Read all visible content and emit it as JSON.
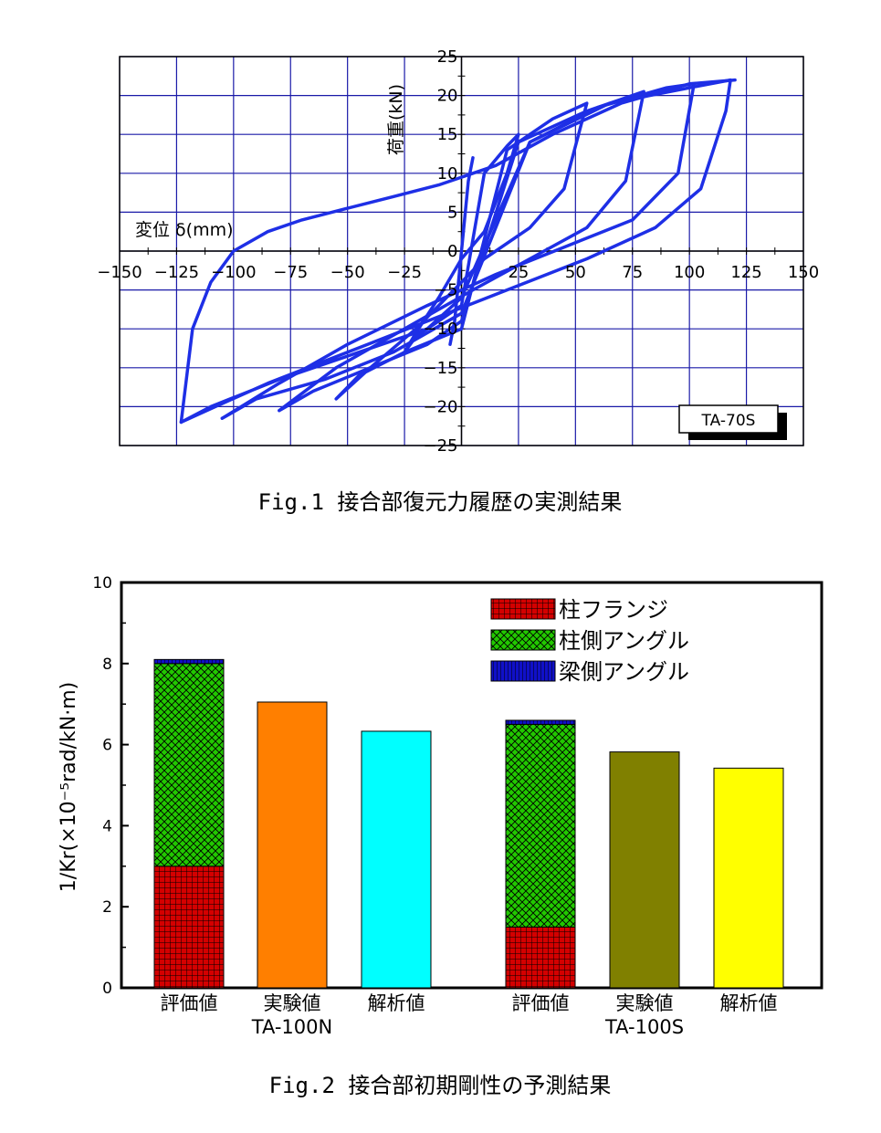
{
  "chart_data": [
    {
      "type": "line",
      "caption": "Fig.1 接合部復元力履歴の実測結果",
      "xlabel": "変位 δ(mm)",
      "ylabel": "荷重(kN)",
      "xlim": [
        -150,
        150
      ],
      "ylim": [
        -25,
        25
      ],
      "x_ticks": [
        "−150",
        "−125",
        "−100",
        "−75",
        "−50",
        "−25",
        "0",
        "25",
        "50",
        "75",
        "100",
        "125",
        "150"
      ],
      "y_ticks": [
        "25",
        "20",
        "15",
        "10",
        "5",
        "0",
        "−5",
        "−10",
        "−15",
        "−20",
        "−25"
      ],
      "grid": true,
      "legend_label": "TA-70S",
      "line_color": "#1e2fe6",
      "series": [
        {
          "amplitude": 5,
          "x": [
            -5,
            -3,
            0,
            3,
            5,
            3,
            0,
            -3,
            -5
          ],
          "y": [
            -12,
            -9,
            0,
            9,
            12,
            9,
            0,
            -9,
            -12
          ]
        },
        {
          "amplitude": 25,
          "x": [
            -25,
            -20,
            -10,
            0,
            10,
            20,
            25,
            20,
            10,
            0,
            -10,
            -20,
            -25
          ],
          "y": [
            -13,
            -11,
            -9,
            -7,
            10,
            13.5,
            15,
            10,
            2.5,
            -1,
            -6,
            -10.5,
            -13
          ]
        },
        {
          "amplitude": 50,
          "x": [
            -55,
            -45,
            -25,
            0,
            20,
            40,
            55,
            45,
            30,
            10,
            0,
            -20,
            -40,
            -55
          ],
          "y": [
            -19,
            -16,
            -13,
            -10,
            13,
            17,
            19,
            8,
            3,
            -1,
            -4,
            -10,
            -15,
            -19
          ]
        },
        {
          "amplitude": 75,
          "x": [
            -80,
            -65,
            -40,
            -15,
            0,
            25,
            55,
            80,
            72,
            55,
            30,
            5,
            -25,
            -55,
            -80
          ],
          "y": [
            -20.5,
            -18,
            -15,
            -12,
            -9,
            14,
            18,
            20.5,
            9,
            3,
            -1,
            -5,
            -10,
            -15,
            -20.5
          ]
        },
        {
          "amplitude": 100,
          "x": [
            -105,
            -90,
            -60,
            -30,
            0,
            30,
            60,
            90,
            102,
            95,
            75,
            45,
            15,
            -15,
            -50,
            -80,
            -105
          ],
          "y": [
            -21.5,
            -19,
            -16.5,
            -13,
            -8,
            14,
            18.5,
            21,
            21.5,
            10,
            4,
            0.5,
            -3,
            -7,
            -12,
            -17,
            -21.5
          ]
        },
        {
          "amplitude": 125,
          "x": [
            -123,
            -110,
            -80,
            -45,
            -15,
            0,
            30,
            65,
            100,
            118,
            116,
            105,
            85,
            55,
            20,
            -15,
            -50,
            -85,
            -108,
            -123
          ],
          "y": [
            -22,
            -20,
            -16.5,
            -13,
            -10,
            -6,
            14,
            19,
            21,
            22,
            18,
            8,
            3,
            -1,
            -5,
            -9,
            -13,
            -17,
            -20,
            -22
          ]
        },
        {
          "amplitude": 0,
          "x": [
            -123,
            -118,
            -110,
            -100,
            -85,
            -70,
            -50,
            -30,
            -10,
            0,
            15,
            40,
            70,
            100,
            120
          ],
          "y": [
            -22,
            -10,
            -4,
            0,
            2.5,
            4,
            5.5,
            7,
            8.5,
            9.5,
            11,
            15,
            19,
            21.5,
            22
          ]
        }
      ]
    },
    {
      "type": "bar",
      "caption": "Fig.2 接合部初期剛性の予測結果",
      "ylabel": "1/Kr(×10⁻⁵rad/kN·m)",
      "ylim": [
        0,
        10
      ],
      "y_ticks": [
        "0",
        "2",
        "4",
        "6",
        "8",
        "10"
      ],
      "categories": [
        "評価値",
        "実験値",
        "解析値",
        "評価値",
        "実験値",
        "解析値"
      ],
      "groups": [
        "TA-100N",
        "TA-100S"
      ],
      "legend": [
        {
          "label": "柱フランジ",
          "color": "#d40000",
          "pattern": "grid"
        },
        {
          "label": "柱側アングル",
          "color": "#22c800",
          "pattern": "cross"
        },
        {
          "label": "梁側アングル",
          "color": "#1010c8",
          "pattern": "vertical"
        }
      ],
      "bars": [
        {
          "category": "評価値",
          "group": "TA-100N",
          "stack": [
            3.0,
            5.0,
            0.1
          ]
        },
        {
          "category": "実験値",
          "group": "TA-100N",
          "value": 7.05,
          "color": "#ff7f00"
        },
        {
          "category": "解析値",
          "group": "TA-100N",
          "value": 6.33,
          "color": "#00ffff"
        },
        {
          "category": "評価値",
          "group": "TA-100S",
          "stack": [
            1.5,
            5.0,
            0.1
          ]
        },
        {
          "category": "実験値",
          "group": "TA-100S",
          "value": 5.82,
          "color": "#808000"
        },
        {
          "category": "解析値",
          "group": "TA-100S",
          "value": 5.42,
          "color": "#ffff00"
        }
      ]
    }
  ]
}
